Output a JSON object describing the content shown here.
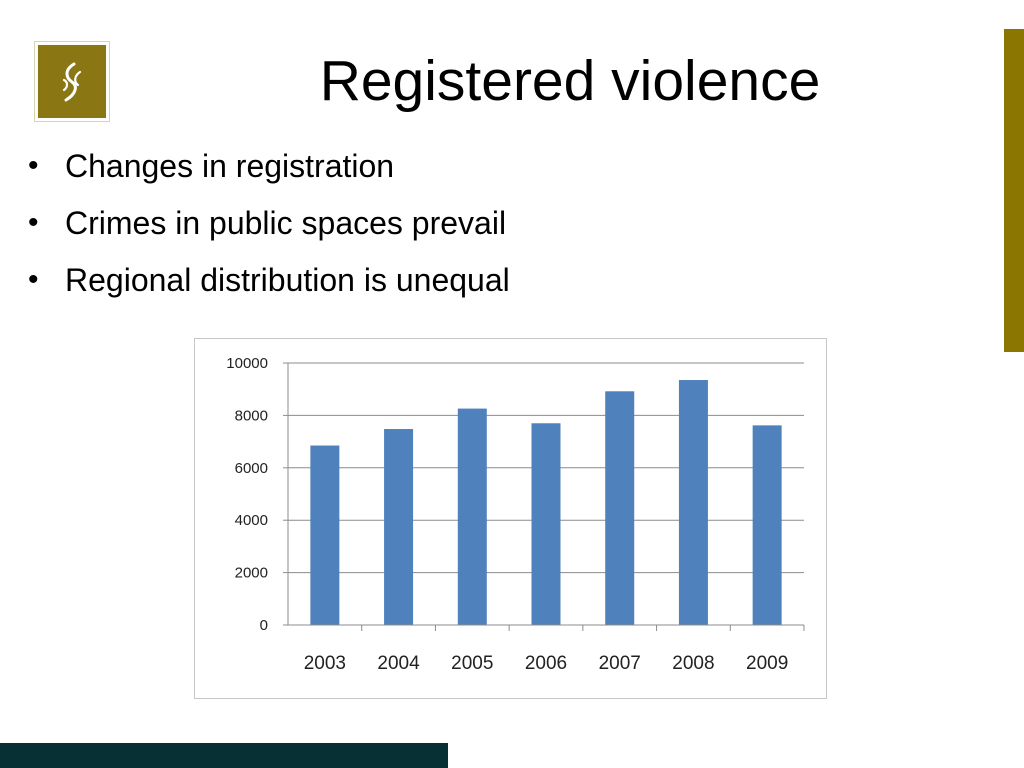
{
  "slide": {
    "title": "Registered violence",
    "bullets": [
      "Changes in registration",
      "Crimes in public spaces prevail",
      "Regional distribution is unequal"
    ]
  },
  "logo": {
    "icon": "stylized-leaf-icon",
    "background_color": "#8a7612"
  },
  "colors": {
    "accent_bar": "#8a7600",
    "footer_bar": "#063034",
    "bar_fill": "#4f81bd"
  },
  "chart_data": {
    "type": "bar",
    "categories": [
      "2003",
      "2004",
      "2005",
      "2006",
      "2007",
      "2008",
      "2009"
    ],
    "values": [
      6850,
      7480,
      8260,
      7700,
      8920,
      9350,
      7620
    ],
    "ylim": [
      0,
      10000
    ],
    "yticks": [
      "0",
      "2000",
      "4000",
      "6000",
      "8000",
      "10000"
    ],
    "grid": true,
    "legend": "none"
  }
}
